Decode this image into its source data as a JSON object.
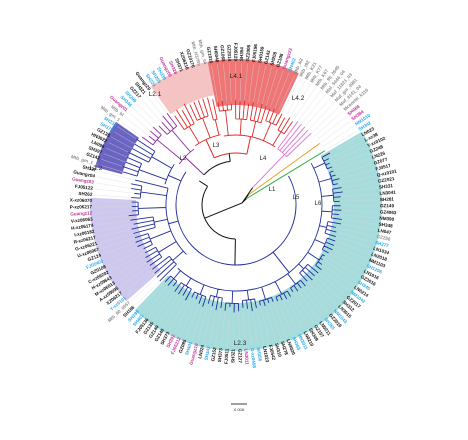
{
  "colors": {
    "L1": "#e07ad8",
    "L2": "#1f2f9a",
    "L3": "#8e2aa8",
    "L4": "#e02a2a",
    "L5": "#e0a020",
    "L6": "#3ab04a",
    "root": "#111111",
    "L2.1_fill": "#6b64c2",
    "L2.2_fill": "#cfc8ee",
    "L2.3_fill": "#a6dcdc",
    "L4.1_fill": "#f7c2c2",
    "L4.2_fill": "#ef7676",
    "tip_black": "#111111",
    "tip_blue": "#2aa8e6",
    "tip_magenta": "#c0339a",
    "tip_gray": "#8c8c8c",
    "spoke": "#d8d8d8"
  },
  "clades": [
    {
      "label": "L4.1",
      "color_key": "L4.1_fill"
    },
    {
      "label": "L4.2",
      "color_key": "L4.2_fill"
    },
    {
      "label": "L2.1",
      "color_key": "L2.1_fill"
    },
    {
      "label": "L2.2",
      "color_key": "L2.2_fill"
    },
    {
      "label": "L2.3",
      "color_key": "L2.3_fill"
    }
  ],
  "lineages": [
    {
      "label": "L1",
      "color_key": "L1"
    },
    {
      "label": "L2",
      "color_key": "L2"
    },
    {
      "label": "L3",
      "color_key": "L3"
    },
    {
      "label": "L4",
      "color_key": "L4"
    },
    {
      "label": "L5",
      "color_key": "L5"
    },
    {
      "label": "L6",
      "color_key": "L6"
    }
  ],
  "scale_bar": {
    "label": "0.008"
  },
  "tips": [
    {
      "text": "SH068",
      "c": "magenta"
    },
    {
      "text": "SH384",
      "c": "magenta"
    },
    {
      "text": "NM1010",
      "c": "blue"
    },
    {
      "text": "SH342",
      "c": "blue"
    },
    {
      "text": "LN023",
      "c": "black"
    },
    {
      "text": "L-xz38",
      "c": "black"
    },
    {
      "text": "Y-xz0102",
      "c": "black"
    },
    {
      "text": "GZ248",
      "c": "black"
    },
    {
      "text": "LN226",
      "c": "black"
    },
    {
      "text": "GZ077",
      "c": "black"
    },
    {
      "text": "FJ0517",
      "c": "black"
    },
    {
      "text": "Q-xz0101",
      "c": "black"
    },
    {
      "text": "GZ2021",
      "c": "black"
    },
    {
      "text": "SH331",
      "c": "black"
    },
    {
      "text": "LN3041",
      "c": "black"
    },
    {
      "text": "SH281",
      "c": "black"
    },
    {
      "text": "GZ149",
      "c": "black"
    },
    {
      "text": "GZ4063",
      "c": "black"
    },
    {
      "text": "NM390",
      "c": "black"
    },
    {
      "text": "SH348",
      "c": "black"
    },
    {
      "text": "LN047",
      "c": "black"
    },
    {
      "text": "GZ256",
      "c": "gray"
    },
    {
      "text": "SH277",
      "c": "blue"
    },
    {
      "text": "LN1034",
      "c": "black"
    },
    {
      "text": "LN2018",
      "c": "black"
    },
    {
      "text": "NM1103",
      "c": "black"
    },
    {
      "text": "SH1206",
      "c": "blue"
    },
    {
      "text": "LN1016",
      "c": "black"
    },
    {
      "text": "GZ3016",
      "c": "black"
    },
    {
      "text": "SH345",
      "c": "blue"
    },
    {
      "text": "LN0214",
      "c": "black"
    },
    {
      "text": "NM1042",
      "c": "blue"
    },
    {
      "text": "GZ2017",
      "c": "black"
    },
    {
      "text": "SH312",
      "c": "black"
    },
    {
      "text": "LN3015",
      "c": "black"
    },
    {
      "text": "NM1043",
      "c": "blue"
    },
    {
      "text": "GZ2016",
      "c": "black"
    },
    {
      "text": "SH355",
      "c": "blue"
    },
    {
      "text": "LN0211",
      "c": "black"
    },
    {
      "text": "GZ157",
      "c": "black"
    },
    {
      "text": "SH349",
      "c": "black"
    },
    {
      "text": "LN0210",
      "c": "black"
    },
    {
      "text": "HN3011",
      "c": "blue"
    },
    {
      "text": "SH368",
      "c": "blue"
    },
    {
      "text": "LN4020",
      "c": "black"
    },
    {
      "text": "SH278",
      "c": "black"
    },
    {
      "text": "SH310",
      "c": "black"
    },
    {
      "text": "FJ0542",
      "c": "black"
    },
    {
      "text": "LN1023",
      "c": "black"
    },
    {
      "text": "SH356",
      "c": "blue"
    },
    {
      "text": "D-xz0408",
      "c": "blue"
    },
    {
      "text": "LN3011",
      "c": "magenta"
    },
    {
      "text": "GZ127",
      "c": "black"
    },
    {
      "text": "SH321",
      "c": "black"
    },
    {
      "text": "FJ0511",
      "c": "black"
    },
    {
      "text": "SH373",
      "c": "black"
    },
    {
      "text": "GZ152",
      "c": "black"
    },
    {
      "text": "SH343",
      "c": "blue"
    },
    {
      "text": "LN024",
      "c": "black"
    },
    {
      "text": "Guangz10",
      "c": "magenta"
    },
    {
      "text": "SH401",
      "c": "blue"
    },
    {
      "text": "GZ095",
      "c": "black"
    },
    {
      "text": "FJ05212",
      "c": "magenta"
    },
    {
      "text": "SH392",
      "c": "magenta"
    },
    {
      "text": "SH373",
      "c": "black"
    },
    {
      "text": "GZ148",
      "c": "black"
    },
    {
      "text": "GZ149",
      "c": "black"
    },
    {
      "text": "GZ135",
      "c": "black"
    },
    {
      "text": "FJ05136",
      "c": "black"
    },
    {
      "text": "SH401",
      "c": "blue"
    },
    {
      "text": "SH399",
      "c": "blue"
    },
    {
      "text": "SH186",
      "c": "black"
    },
    {
      "text": "Mtb_80_0057",
      "c": "gray"
    },
    {
      "text": "Y-xz0101",
      "c": "blue"
    },
    {
      "text": "XZ06217",
      "c": "black"
    },
    {
      "text": "A-xz09095",
      "c": "black"
    },
    {
      "text": "M-xz06013",
      "c": "black"
    },
    {
      "text": "H-xz09643",
      "c": "black"
    },
    {
      "text": "C-xz06202",
      "c": "black"
    },
    {
      "text": "GZ0108",
      "c": "black"
    },
    {
      "text": "FJ05402",
      "c": "blue"
    },
    {
      "text": "GZ124",
      "c": "black"
    },
    {
      "text": "U-xz06067",
      "c": "black"
    },
    {
      "text": "G-xz06221",
      "c": "black"
    },
    {
      "text": "R-xz06217",
      "c": "black"
    },
    {
      "text": "I-xz06182",
      "c": "black"
    },
    {
      "text": "H-xz06174",
      "c": "black"
    },
    {
      "text": "V-xz06063",
      "c": "black"
    },
    {
      "text": "Guangz12",
      "c": "magenta"
    },
    {
      "text": "P-xz06217",
      "c": "black"
    },
    {
      "text": "X-xz06070",
      "c": "black"
    },
    {
      "text": "SH262",
      "c": "black"
    },
    {
      "text": "FJ05122",
      "c": "black"
    },
    {
      "text": "Guangz03",
      "c": "magenta"
    },
    {
      "text": "Guangz04",
      "c": "black"
    },
    {
      "text": "SH337",
      "c": "black"
    },
    {
      "text": "Mtb_gm_1_1",
      "c": "gray"
    },
    {
      "text": "GZ142",
      "c": "black"
    },
    {
      "text": "SH397",
      "c": "black"
    },
    {
      "text": "LN098",
      "c": "black"
    },
    {
      "text": "HN3022",
      "c": "black"
    },
    {
      "text": "GZ135",
      "c": "black"
    },
    {
      "text": "SH375",
      "c": "blue"
    },
    {
      "text": "SH234",
      "c": "blue"
    },
    {
      "text": "Mtb_gm_1",
      "c": "gray"
    },
    {
      "text": "Mtb_bl",
      "c": "gray"
    },
    {
      "text": "Guangz01",
      "c": "magenta"
    },
    {
      "text": "SH346",
      "c": "blue"
    },
    {
      "text": "SH299",
      "c": "blue"
    },
    {
      "text": "GZ217",
      "c": "black"
    },
    {
      "text": "SH321",
      "c": "black"
    },
    {
      "text": "Guangz29",
      "c": "black"
    },
    {
      "text": "SH229",
      "c": "blue"
    },
    {
      "text": "SH265",
      "c": "blue"
    },
    {
      "text": "SH339",
      "c": "blue"
    },
    {
      "text": "Guangz06",
      "c": "magenta"
    },
    {
      "text": "SH328",
      "c": "magenta"
    },
    {
      "text": "SH371",
      "c": "black"
    },
    {
      "text": "XZ06216",
      "c": "black"
    },
    {
      "text": "GZ10176",
      "c": "black"
    },
    {
      "text": "Mtb_H37Rv",
      "c": "gray"
    },
    {
      "text": "Mtb_gm_04",
      "c": "gray"
    },
    {
      "text": "GZ1016",
      "c": "black"
    },
    {
      "text": "SH0048",
      "c": "black"
    },
    {
      "text": "GZ1068",
      "c": "black"
    },
    {
      "text": "GZ2014",
      "c": "black"
    },
    {
      "text": "FJ05129",
      "c": "black"
    },
    {
      "text": "SH354",
      "c": "black"
    },
    {
      "text": "GZ2008",
      "c": "black"
    },
    {
      "text": "FJ05196",
      "c": "black"
    },
    {
      "text": "SH0159",
      "c": "black"
    },
    {
      "text": "GZ143",
      "c": "black"
    },
    {
      "text": "SH208",
      "c": "black"
    },
    {
      "text": "GZ108",
      "c": "black"
    },
    {
      "text": "Guangz23",
      "c": "magenta"
    },
    {
      "text": "SH402",
      "c": "blue"
    },
    {
      "text": "Mtb_NZ",
      "c": "gray"
    },
    {
      "text": "Mtb_t92",
      "c": "gray"
    },
    {
      "text": "Mtb_K21",
      "c": "gray"
    },
    {
      "text": "Mtb_K77",
      "c": "gray"
    },
    {
      "text": "Mtb_K67",
      "c": "gray"
    },
    {
      "text": "Mtb_95_0545",
      "c": "gray"
    },
    {
      "text": "Maf_5444_04",
      "c": "gray"
    },
    {
      "text": "Maf_11821_03",
      "c": "gray"
    },
    {
      "text": "Maf_gm_0981",
      "c": "gray"
    },
    {
      "text": "Maf_4141_04",
      "c": "gray"
    },
    {
      "text": "Mcanetti_k116",
      "c": "gray"
    }
  ]
}
